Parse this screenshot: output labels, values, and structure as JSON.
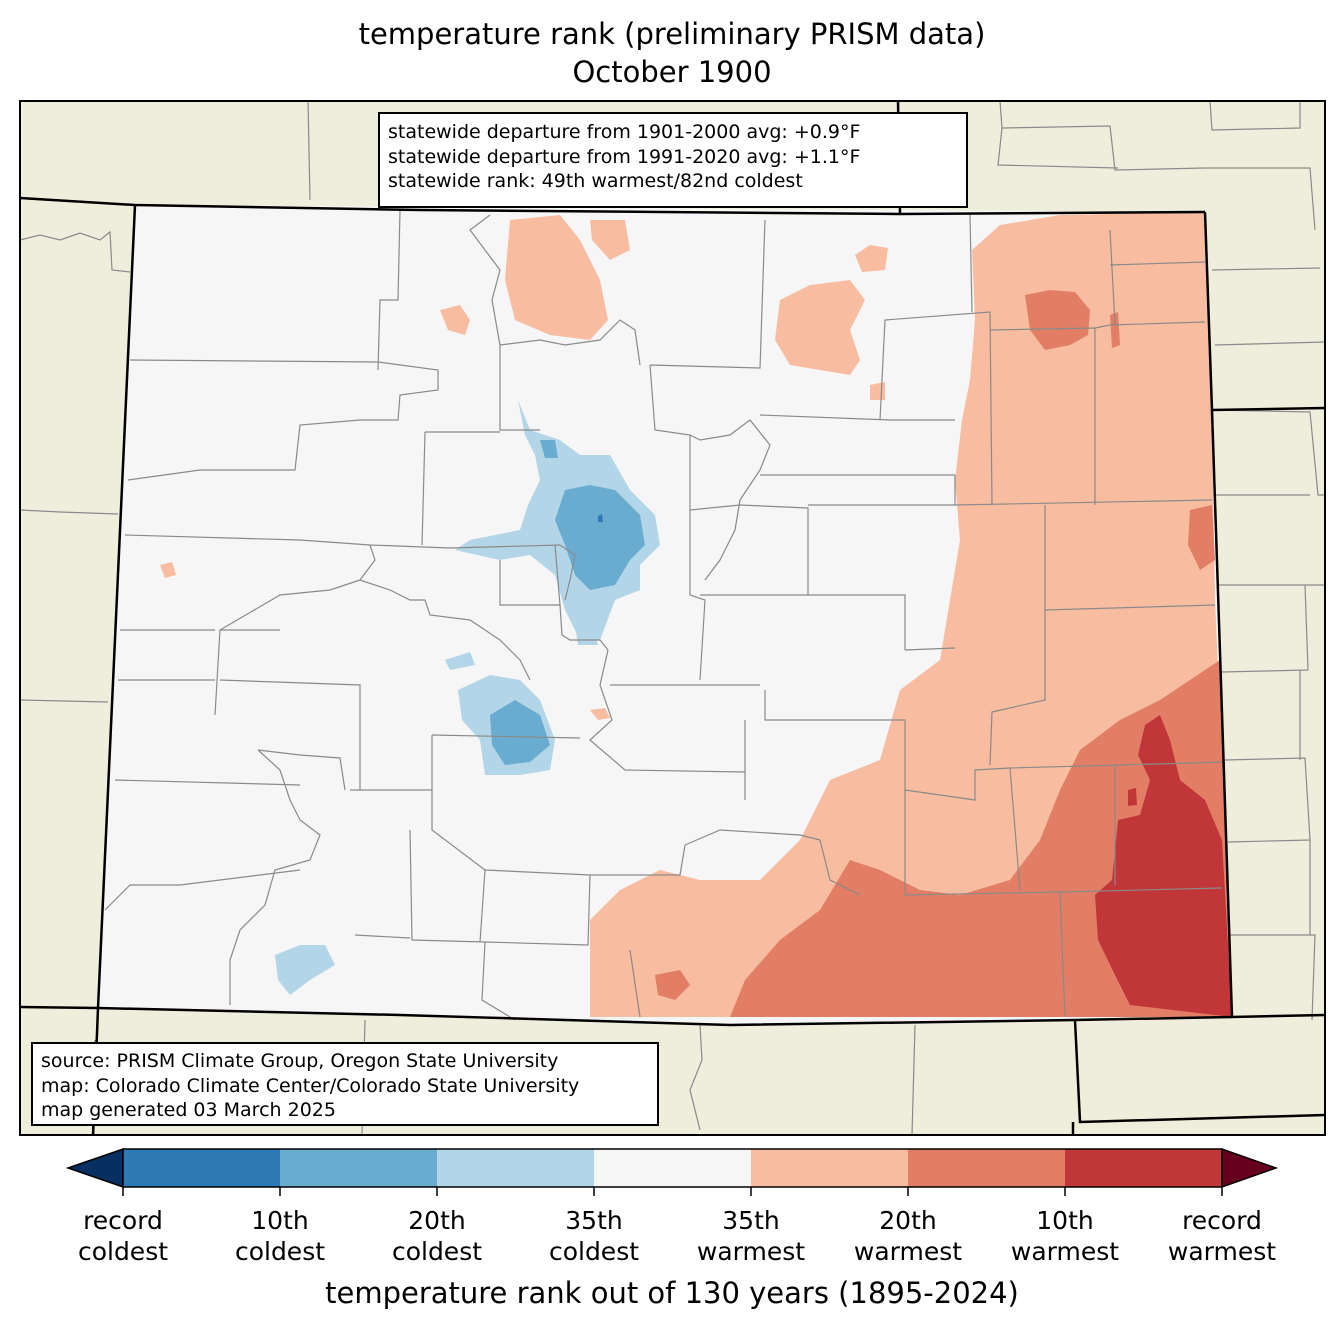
{
  "title": {
    "line1": "temperature rank (preliminary PRISM data)",
    "line2": "October 1900"
  },
  "stats_box": {
    "line1": "statewide departure from 1901-2000 avg: +0.9°F",
    "line2": "statewide departure from 1991-2020 avg: +1.1°F",
    "line3": "statewide rank: 49th warmest/82nd coldest"
  },
  "source_box": {
    "line1": "source: PRISM Climate Group, Oregon State University",
    "line2": "map: Colorado Climate Center/Colorado State University",
    "line3": "map generated 03 March 2025"
  },
  "colorbar": {
    "title": "temperature rank out of 130 years (1895-2024)",
    "tick_labels": [
      {
        "line1": "record",
        "line2": "coldest"
      },
      {
        "line1": "10th",
        "line2": "coldest"
      },
      {
        "line1": "20th",
        "line2": "coldest"
      },
      {
        "line1": "35th",
        "line2": "coldest"
      },
      {
        "line1": "35th",
        "line2": "warmest"
      },
      {
        "line1": "20th",
        "line2": "warmest"
      },
      {
        "line1": "10th",
        "line2": "warmest"
      },
      {
        "line1": "record",
        "line2": "warmest"
      }
    ],
    "colors": {
      "below_record_coldest": "#053061",
      "record_to_10th_coldest": "#2f79b5",
      "10th_to_20th_coldest": "#6aacd0",
      "20th_to_35th_coldest": "#b2d5e7",
      "near_normal": "#f6f6f6",
      "35th_to_20th_warmest": "#f8bca1",
      "20th_to_10th_warmest": "#e27e65",
      "10th_to_record_warmest": "#c13639",
      "above_record_warmest": "#67001f"
    }
  },
  "map_colors": {
    "land_outside": "#efeedc",
    "state_border": "#000000",
    "county_lines": "#8a8a8a"
  }
}
